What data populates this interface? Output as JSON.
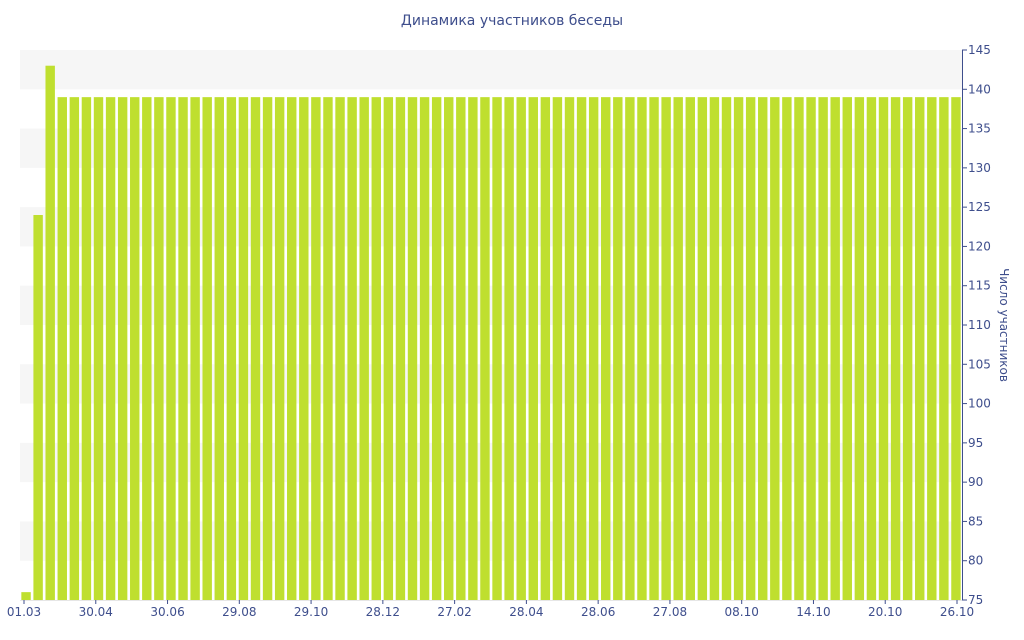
{
  "chart_data": {
    "type": "bar",
    "title": "Динамика участников беседы",
    "xlabel": "",
    "ylabel": "Число участников",
    "ylim": [
      75,
      145
    ],
    "yticks": [
      75,
      80,
      85,
      90,
      95,
      100,
      105,
      110,
      115,
      120,
      125,
      130,
      135,
      140,
      145
    ],
    "x_tick_labels": [
      "01.03",
      "30.04",
      "30.06",
      "29.08",
      "29.10",
      "28.12",
      "27.02",
      "28.04",
      "28.06",
      "27.08",
      "08.10",
      "14.10",
      "20.10",
      "26.10"
    ],
    "grid": "horizontal alternating bands",
    "y_axis_position": "right",
    "values": [
      76,
      124,
      143,
      139,
      139,
      139,
      139,
      139,
      139,
      139,
      139,
      139,
      139,
      139,
      139,
      139,
      139,
      139,
      139,
      139,
      139,
      139,
      139,
      139,
      139,
      139,
      139,
      139,
      139,
      139,
      139,
      139,
      139,
      139,
      139,
      139,
      139,
      139,
      139,
      139,
      139,
      139,
      139,
      139,
      139,
      139,
      139,
      139,
      139,
      139,
      139,
      139,
      139,
      139,
      139,
      139,
      139,
      139,
      139,
      139,
      139,
      139,
      139,
      139,
      139,
      139,
      139,
      139,
      139,
      139,
      139,
      139,
      139,
      139,
      139,
      139,
      139,
      139
    ],
    "bar_color": "#bfdf2f",
    "band_color": "#f6f6f6",
    "text_color": "#3e4e8c"
  }
}
